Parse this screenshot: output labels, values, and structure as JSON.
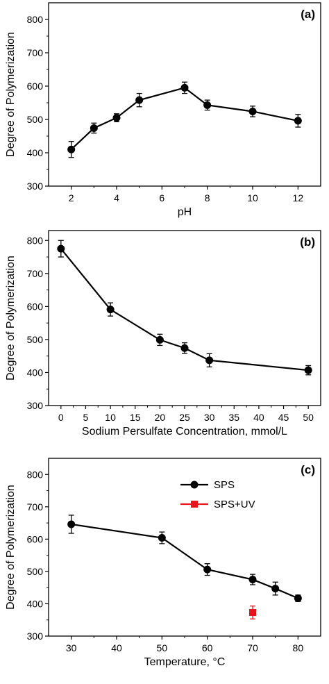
{
  "chart_data": [
    {
      "type": "line",
      "panel_label": "(a)",
      "xlabel": "pH",
      "ylabel": "Degree of Polymerization",
      "xlim": [
        1,
        13
      ],
      "ylim": [
        300,
        850
      ],
      "xticks": [
        2,
        4,
        6,
        8,
        10,
        12
      ],
      "yticks": [
        300,
        400,
        500,
        600,
        700,
        800
      ],
      "grid": false,
      "series": [
        {
          "color": "#000000",
          "marker": "circle",
          "x": [
            2,
            3,
            4,
            5,
            7,
            8,
            10,
            12
          ],
          "y": [
            410,
            474,
            505,
            558,
            595,
            543,
            524,
            496
          ],
          "err": [
            24,
            15,
            12,
            20,
            17,
            15,
            16,
            19
          ]
        }
      ]
    },
    {
      "type": "line",
      "panel_label": "(b)",
      "xlabel": "Sodium Persulfate Concentration, mmol/L",
      "ylabel": "Degree of Polymerization",
      "xlim": [
        -2.5,
        52.5
      ],
      "ylim": [
        300,
        830
      ],
      "xticks": [
        0,
        5,
        10,
        15,
        20,
        25,
        30,
        35,
        40,
        45,
        50
      ],
      "yticks": [
        300,
        400,
        500,
        600,
        700,
        800
      ],
      "grid": false,
      "series": [
        {
          "color": "#000000",
          "marker": "circle",
          "x": [
            0,
            10,
            20,
            25,
            30,
            50
          ],
          "y": [
            775,
            591,
            499,
            474,
            437,
            407
          ],
          "err": [
            25,
            20,
            17,
            16,
            20,
            14
          ]
        }
      ]
    },
    {
      "type": "line",
      "panel_label": "(c)",
      "xlabel": "Temperature, °C",
      "ylabel": "Degree of Polymerization",
      "xlim": [
        25,
        85
      ],
      "ylim": [
        300,
        850
      ],
      "xticks": [
        30,
        40,
        50,
        60,
        70,
        80
      ],
      "yticks": [
        300,
        400,
        500,
        600,
        700,
        800
      ],
      "grid": false,
      "legend_position": "top-right",
      "series": [
        {
          "name": "SPS",
          "color": "#000000",
          "marker": "circle",
          "x": [
            30,
            50,
            60,
            70,
            75,
            80
          ],
          "y": [
            646,
            604,
            506,
            475,
            447,
            417
          ],
          "err": [
            28,
            18,
            18,
            16,
            20,
            10
          ]
        },
        {
          "name": "SPS+UV",
          "color": "#e8141b",
          "marker": "square",
          "x": [
            70
          ],
          "y": [
            373
          ],
          "err": [
            20
          ]
        }
      ]
    }
  ]
}
